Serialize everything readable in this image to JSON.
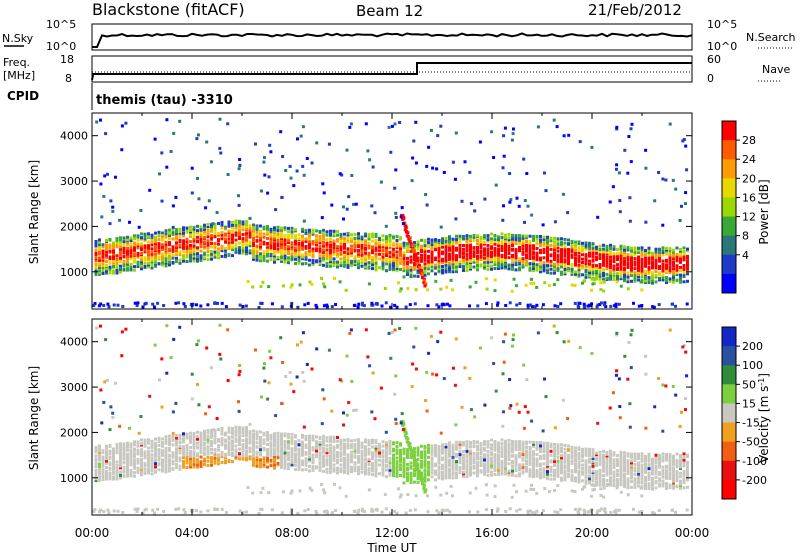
{
  "header": {
    "station": "Blackstone (fitACF)",
    "beam": "Beam 12",
    "date": "21/Feb/2012"
  },
  "strips": {
    "nsky_label": "N.Sky",
    "nsky_ticks": [
      "10^5",
      "10^0"
    ],
    "nsearch_label": "N.Search",
    "nsearch_ticks": [
      "10^5",
      "10^0"
    ],
    "freq_label_1": "Freq.",
    "freq_label_2": "[MHz]",
    "freq_ticks": [
      "18",
      "8"
    ],
    "nave_label": "Nave",
    "nave_ticks": [
      "60",
      "0"
    ],
    "cpid_label": "CPID",
    "cpid_text": "themis (tau) -3310"
  },
  "chart_data": [
    {
      "type": "heatmap",
      "title": "",
      "xlabel": "",
      "ylabel": "Slant Range [km]",
      "x_ticks": [
        "00:00",
        "04:00",
        "08:00",
        "12:00",
        "16:00",
        "20:00",
        "00:00"
      ],
      "y_ticks": [
        "1000",
        "2000",
        "3000",
        "4000"
      ],
      "xlim_hours": [
        0,
        24
      ],
      "ylim_km": [
        180,
        4500
      ],
      "colorbar": {
        "label": "Power [dB]",
        "ticks": [
          "28",
          "24",
          "20",
          "16",
          "12",
          "8",
          "4"
        ],
        "colors": [
          "#ff0000",
          "#ff5a00",
          "#ff9a00",
          "#e8d800",
          "#9ad800",
          "#38a838",
          "#287878",
          "#1e3cc8",
          "#0000ff"
        ]
      },
      "features": [
        {
          "name": "main-band",
          "t_start": 0,
          "t_end": 6,
          "range_start_km": 1400,
          "range_end_km": 2000
        },
        {
          "name": "descending-streak",
          "t_start": 12.3,
          "t_end": 13.2,
          "range_start_km": 2300,
          "range_end_km": 700
        },
        {
          "name": "late-band",
          "t_start": 13,
          "t_end": 24,
          "range_start_km": 1500,
          "range_end_km": 1500
        }
      ]
    },
    {
      "type": "heatmap",
      "title": "",
      "xlabel": "Time UT",
      "ylabel": "Slant Range [km]",
      "x_ticks": [
        "00:00",
        "04:00",
        "08:00",
        "12:00",
        "16:00",
        "20:00",
        "00:00"
      ],
      "y_ticks": [
        "1000",
        "2000",
        "3000",
        "4000"
      ],
      "xlim_hours": [
        0,
        24
      ],
      "ylim_km": [
        180,
        4500
      ],
      "colorbar": {
        "label_main": "Velocity [m s",
        "label_sup": "-1",
        "label_end": "]",
        "ticks": [
          "200",
          "100",
          "50",
          "15",
          "-15",
          "-50",
          "-100",
          "-200"
        ],
        "colors": [
          "#1428c8",
          "#2a50a0",
          "#2e8c3a",
          "#7cd040",
          "#c8c8c0",
          "#f0a020",
          "#f06010",
          "#e81010",
          "#ff0000"
        ]
      }
    }
  ]
}
